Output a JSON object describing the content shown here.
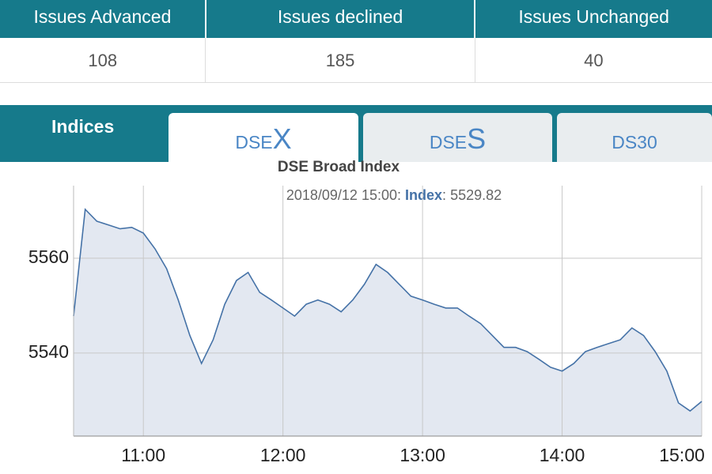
{
  "table": {
    "headers": [
      "Issues Advanced",
      "Issues declined",
      "Issues Unchanged"
    ],
    "rows": [
      [
        108,
        185,
        40
      ]
    ]
  },
  "tabs": {
    "label": "Indices",
    "items": [
      {
        "prefix": "DSE",
        "suffix": "X"
      },
      {
        "prefix": "DSE",
        "suffix": "S"
      },
      {
        "prefix": "DS30",
        "suffix": ""
      }
    ]
  },
  "chart_data": {
    "type": "line",
    "title": "DSE Broad Index",
    "tooltip": {
      "date": "2018/09/12 15:00:",
      "label": "Index",
      "separator": ":",
      "value": 5529.82
    },
    "x": [
      630,
      635,
      640,
      645,
      650,
      655,
      660,
      665,
      670,
      675,
      680,
      685,
      690,
      695,
      700,
      705,
      710,
      715,
      720,
      725,
      730,
      735,
      740,
      745,
      750,
      755,
      760,
      765,
      770,
      775,
      780,
      785,
      790,
      795,
      800,
      805,
      810,
      815,
      820,
      825,
      830,
      835,
      840,
      845,
      850,
      855,
      860,
      865,
      870,
      875,
      880,
      885,
      890,
      895,
      900
    ],
    "series": [
      {
        "name": "Index",
        "color": "#4572a7",
        "fill": "#e3e8f1",
        "values": [
          5547.8,
          5570.3,
          5567.8,
          5567,
          5566.2,
          5566.5,
          5565.3,
          5562,
          5557.8,
          5551.2,
          5543.7,
          5537.8,
          5542.8,
          5550.3,
          5555.3,
          5557,
          5552.8,
          5551.2,
          5549.5,
          5547.8,
          5550.3,
          5551.2,
          5550.3,
          5548.7,
          5551.2,
          5554.5,
          5558.7,
          5557,
          5554.5,
          5552,
          5551.2,
          5550.3,
          5549.5,
          5549.5,
          5547.8,
          5546.2,
          5543.7,
          5541.2,
          5541.2,
          5540.3,
          5538.7,
          5537,
          5536.2,
          5537.8,
          5540.3,
          5541.2,
          5542,
          5542.8,
          5545.3,
          5543.7,
          5540.3,
          5536.2,
          5529.5,
          5527.8,
          5529.82
        ]
      }
    ],
    "xlim": [
      630,
      900
    ],
    "xticks": [
      {
        "value": 660,
        "label": "11:00"
      },
      {
        "value": 720,
        "label": "12:00"
      },
      {
        "value": 780,
        "label": "13:00"
      },
      {
        "value": 840,
        "label": "14:00"
      },
      {
        "value": 900,
        "label": "15:00"
      }
    ],
    "ylim": [
      5522.5,
      5575.3
    ],
    "yticks": [
      5540,
      5560
    ],
    "grid": true
  }
}
